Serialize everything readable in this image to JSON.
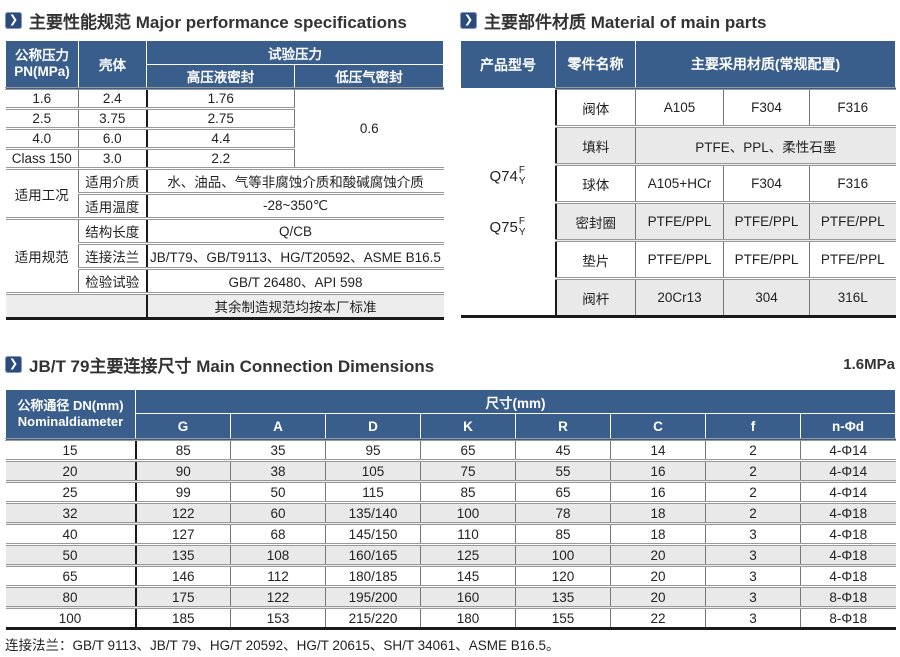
{
  "colors": {
    "header_blue": "#3a5e8c",
    "icon_blue": "#2c4a7c",
    "stripe_gray": "#e9e9e9",
    "footer_row_gray": "#ededed",
    "text_dark": "#222222"
  },
  "icons": {
    "chevron": "❯"
  },
  "perf": {
    "title": "主要性能规范 Major performance specifications",
    "header": {
      "pressure_line1": "公称压力",
      "pressure_line2": "PN(MPa)",
      "shell": "壳体",
      "test_pressure": "试验压力",
      "high_seal": "高压液密封",
      "low_seal": "低压气密封"
    },
    "pressure_rows": [
      {
        "pn": "1.6",
        "shell": "2.4",
        "high": "1.76"
      },
      {
        "pn": "2.5",
        "shell": "3.75",
        "high": "2.75"
      },
      {
        "pn": "4.0",
        "shell": "6.0",
        "high": "4.4"
      },
      {
        "pn": "Class 150",
        "shell": "3.0",
        "high": "2.2"
      }
    ],
    "low_seal_value": "0.6",
    "conditions_label": "适用工况",
    "specs_label": "适用规范",
    "info_rows": [
      {
        "label": "适用介质",
        "value": "水、油品、气等非腐蚀介质和酸碱腐蚀介质"
      },
      {
        "label": "适用温度",
        "value": "-28~350℃"
      },
      {
        "label": "结构长度",
        "value": "Q/CB"
      },
      {
        "label": "连接法兰",
        "value": "JB/T79、GB/T9113、HG/T20592、ASME B16.5"
      },
      {
        "label": "检验试验",
        "value": "GB/T 26480、API 598"
      }
    ],
    "footer_value": "其余制造规范均按本厂标准"
  },
  "materials": {
    "title": "主要部件材质 Material of main parts",
    "header": {
      "model": "产品型号",
      "part": "零件名称",
      "material": "主要采用材质(常规配置)"
    },
    "models": [
      {
        "base": "Q74",
        "sup": "F",
        "sub": "Y"
      },
      {
        "base": "Q75",
        "sup": "F",
        "sub": "Y"
      }
    ],
    "rows": [
      {
        "part": "阀体",
        "c1": "A105",
        "c2": "F304",
        "c3": "F316"
      },
      {
        "part": "填料",
        "merged": "PTFE、PPL、柔性石墨"
      },
      {
        "part": "球体",
        "c1": "A105+HCr",
        "c2": "F304",
        "c3": "F316"
      },
      {
        "part": "密封圈",
        "c1": "PTFE/PPL",
        "c2": "PTFE/PPL",
        "c3": "PTFE/PPL"
      },
      {
        "part": "垫片",
        "c1": "PTFE/PPL",
        "c2": "PTFE/PPL",
        "c3": "PTFE/PPL"
      },
      {
        "part": "阀杆",
        "c1": "20Cr13",
        "c2": "304",
        "c3": "316L"
      }
    ]
  },
  "dimensions": {
    "title": "JB/T 79主要连接尺寸 Main Connection Dimensions",
    "pressure_badge": "1.6MPa",
    "dn_header_line1": "公称通径 DN(mm)",
    "dn_header_line2": "Nominaldiameter",
    "size_header": "尺寸(mm)",
    "columns": [
      "G",
      "A",
      "D",
      "K",
      "R",
      "C",
      "f",
      "n-Φd"
    ],
    "rows": [
      [
        "15",
        "85",
        "35",
        "95",
        "65",
        "45",
        "14",
        "2",
        "4-Φ14"
      ],
      [
        "20",
        "90",
        "38",
        "105",
        "75",
        "55",
        "16",
        "2",
        "4-Φ14"
      ],
      [
        "25",
        "99",
        "50",
        "115",
        "85",
        "65",
        "16",
        "2",
        "4-Φ14"
      ],
      [
        "32",
        "122",
        "60",
        "135/140",
        "100",
        "78",
        "18",
        "2",
        "4-Φ18"
      ],
      [
        "40",
        "127",
        "68",
        "145/150",
        "110",
        "85",
        "18",
        "3",
        "4-Φ18"
      ],
      [
        "50",
        "135",
        "108",
        "160/165",
        "125",
        "100",
        "20",
        "3",
        "4-Φ18"
      ],
      [
        "65",
        "146",
        "112",
        "180/185",
        "145",
        "120",
        "20",
        "3",
        "4-Φ18"
      ],
      [
        "80",
        "175",
        "122",
        "195/200",
        "160",
        "135",
        "20",
        "3",
        "8-Φ18"
      ],
      [
        "100",
        "185",
        "153",
        "215/220",
        "180",
        "155",
        "22",
        "3",
        "8-Φ18"
      ]
    ]
  },
  "page_footer": {
    "text": "连接法兰：GB/T 9113、JB/T 79、HG/T 20592、HG/T 20615、SH/T 34061、ASME B16.5。"
  }
}
